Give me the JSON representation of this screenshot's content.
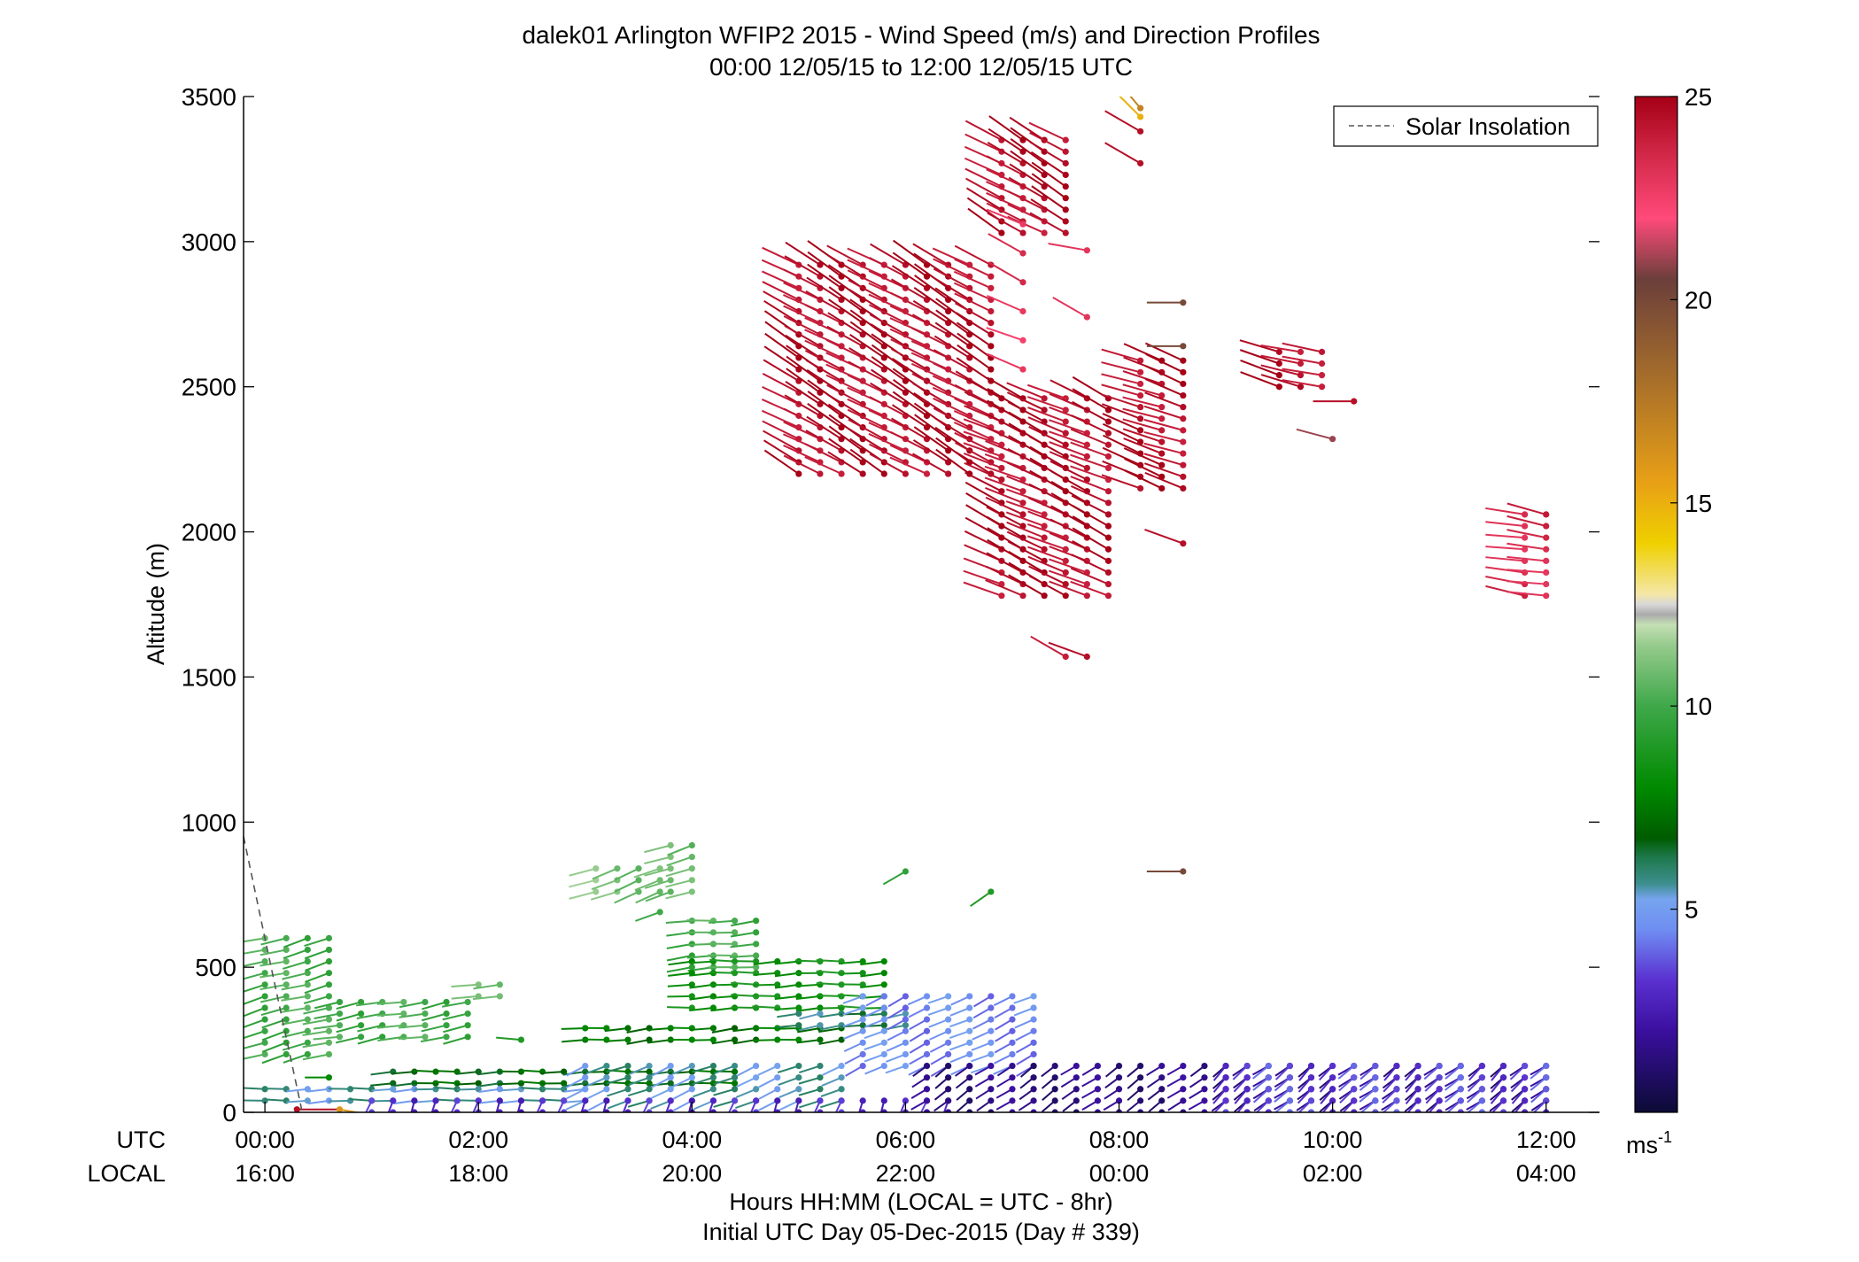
{
  "chart_data": {
    "type": "scatter",
    "title": "dalek01 Arlington WFIP2 2015 - Wind Speed (m/s) and Direction Profiles",
    "subtitle": "00:00 12/05/15 to 12:00 12/05/15  UTC",
    "xlabel": "Hours HH:MM  (LOCAL = UTC - 8hr)",
    "xlabel2": "Initial UTC Day 05-Dec-2015 (Day # 339)",
    "ylabel": "Altitude (m)",
    "xlim": [
      -0.2,
      12.5
    ],
    "ylim": [
      0,
      3500
    ],
    "y_ticks": [
      "0",
      "500",
      "1000",
      "1500",
      "2000",
      "2500",
      "3000",
      "3500"
    ],
    "utc_label": "UTC",
    "local_label": "LOCAL",
    "utc_ticks": [
      "00:00",
      "02:00",
      "04:00",
      "06:00",
      "08:00",
      "10:00",
      "12:00"
    ],
    "local_ticks": [
      "16:00",
      "18:00",
      "20:00",
      "22:00",
      "00:00",
      "02:00",
      "04:00"
    ],
    "legend": {
      "label": "Solar Insolation",
      "position": "top-right"
    },
    "colorbar": {
      "range": [
        0,
        25
      ],
      "ticks": [
        "5",
        "10",
        "15",
        "20",
        "25"
      ],
      "unit": "ms",
      "unit_exp": "-1"
    },
    "solar_insolation": [
      [
        -0.2,
        950
      ],
      [
        0.0,
        600
      ],
      [
        0.35,
        0
      ]
    ],
    "series": [
      {
        "segments": [
          {
            "t0": 0.0,
            "t1": 0.6,
            "z0": 200,
            "z1": 600,
            "dz": 40,
            "dir": 255,
            "spd": 10
          },
          {
            "t0": 0.7,
            "t1": 1.9,
            "z0": 260,
            "z1": 400,
            "dz": 40,
            "dir": 260,
            "spd": 10
          },
          {
            "t0": 2.0,
            "t1": 2.2,
            "z0": 400,
            "z1": 440,
            "dz": 40,
            "dir": 260,
            "spd": 10.5
          },
          {
            "t0": 3.1,
            "t1": 3.7,
            "z0": 760,
            "z1": 840,
            "dz": 40,
            "dir": 250,
            "spd": 11
          },
          {
            "t0": 3.8,
            "t1": 4.0,
            "z0": 760,
            "z1": 940,
            "dz": 40,
            "dir": 250,
            "spd": 10.5
          },
          {
            "t0": 4.0,
            "t1": 4.6,
            "z0": 500,
            "z1": 660,
            "dz": 40,
            "dir": 265,
            "spd": 10
          },
          {
            "t0": 4.0,
            "t1": 5.8,
            "z0": 360,
            "z1": 520,
            "dz": 40,
            "dir": 268,
            "spd": 8.5
          },
          {
            "t0": 3.0,
            "t1": 5.4,
            "z0": 250,
            "z1": 300,
            "dz": 40,
            "dir": 265,
            "spd": 7.5
          },
          {
            "t0": 1.2,
            "t1": 4.4,
            "z0": 100,
            "z1": 140,
            "dz": 40,
            "dir": 268,
            "spd": 7
          },
          {
            "t0": 5.0,
            "t1": 6.0,
            "z0": 300,
            "z1": 360,
            "dz": 40,
            "dir": 262,
            "spd": 6
          },
          {
            "t0": 0.0,
            "t1": 3.0,
            "z0": 40,
            "z1": 80,
            "dz": 40,
            "dir": 268,
            "spd": 5.5
          },
          {
            "t0": 3.0,
            "t1": 5.5,
            "z0": 40,
            "z1": 160,
            "dz": 40,
            "dir": 248,
            "spd": 5.5
          },
          {
            "t0": 5.6,
            "t1": 7.2,
            "z0": 160,
            "z1": 400,
            "dz": 40,
            "dir": 245,
            "spd": 4.5
          },
          {
            "t0": 1.0,
            "t1": 6.4,
            "z0": 0,
            "z1": 40,
            "dz": 40,
            "dir": 200,
            "spd": 3
          },
          {
            "t0": 6.2,
            "t1": 12.0,
            "z0": 0,
            "z1": 160,
            "dz": 40,
            "dir": 235,
            "spd": 1.5
          },
          {
            "t0": 9.0,
            "t1": 12.0,
            "z0": 0,
            "z1": 160,
            "dz": 40,
            "dir": 225,
            "spd": 3.5
          },
          {
            "t0": 5.0,
            "t1": 6.8,
            "z0": 2200,
            "z1": 2940,
            "dz": 40,
            "dir": 300,
            "spd": 24.5
          },
          {
            "t0": 6.9,
            "t1": 8.0,
            "z0": 1780,
            "z1": 2480,
            "dz": 40,
            "dir": 295,
            "spd": 24.5
          },
          {
            "t0": 6.9,
            "t1": 7.5,
            "z0": 3030,
            "z1": 3350,
            "dz": 40,
            "dir": 300,
            "spd": 24.5
          },
          {
            "t0": 7.1,
            "t1": 7.2,
            "z0": 2560,
            "z1": 3150,
            "dz": 100,
            "dir": 295,
            "spd": 23
          },
          {
            "t0": 8.2,
            "t1": 8.6,
            "z0": 2150,
            "z1": 2620,
            "dz": 40,
            "dir": 290,
            "spd": 24.5
          },
          {
            "t0": 9.5,
            "t1": 10.0,
            "z0": 2500,
            "z1": 2640,
            "dz": 40,
            "dir": 285,
            "spd": 24.5
          },
          {
            "t0": 11.8,
            "t1": 12.0,
            "z0": 1780,
            "z1": 2090,
            "dz": 40,
            "dir": 280,
            "spd": 23.5
          }
        ],
        "points": [
          {
            "t": 8.2,
            "z": 3460,
            "dir": 320,
            "spd": 17
          },
          {
            "t": 8.2,
            "z": 3430,
            "dir": 315,
            "spd": 15
          },
          {
            "t": 8.2,
            "z": 3380,
            "dir": 300,
            "spd": 24.5
          },
          {
            "t": 8.2,
            "z": 3270,
            "dir": 300,
            "spd": 24.5
          },
          {
            "t": 7.7,
            "z": 2970,
            "dir": 280,
            "spd": 23
          },
          {
            "t": 7.7,
            "z": 2740,
            "dir": 300,
            "spd": 23
          },
          {
            "t": 8.6,
            "z": 2790,
            "dir": 270,
            "spd": 20
          },
          {
            "t": 8.6,
            "z": 2640,
            "dir": 270,
            "spd": 20
          },
          {
            "t": 10.0,
            "z": 2320,
            "dir": 285,
            "spd": 21
          },
          {
            "t": 10.2,
            "z": 2450,
            "dir": 270,
            "spd": 24.5
          },
          {
            "t": 8.6,
            "z": 1960,
            "dir": 290,
            "spd": 24.5
          },
          {
            "t": 7.5,
            "z": 1570,
            "dir": 300,
            "spd": 24
          },
          {
            "t": 7.7,
            "z": 1570,
            "dir": 290,
            "spd": 24.5
          },
          {
            "t": 8.6,
            "z": 830,
            "dir": 270,
            "spd": 20
          },
          {
            "t": 6.0,
            "z": 830,
            "dir": 240,
            "spd": 9.5
          },
          {
            "t": 6.8,
            "z": 760,
            "dir": 235,
            "spd": 9
          },
          {
            "t": 3.7,
            "z": 690,
            "dir": 250,
            "spd": 10
          },
          {
            "t": 2.4,
            "z": 250,
            "dir": 275,
            "spd": 9
          },
          {
            "t": 0.6,
            "z": 120,
            "dir": 270,
            "spd": 8
          },
          {
            "t": 0.3,
            "z": 10,
            "dir": 90,
            "spd": 24.5
          },
          {
            "t": 0.7,
            "z": 10,
            "dir": 100,
            "spd": 16
          }
        ]
      }
    ]
  }
}
